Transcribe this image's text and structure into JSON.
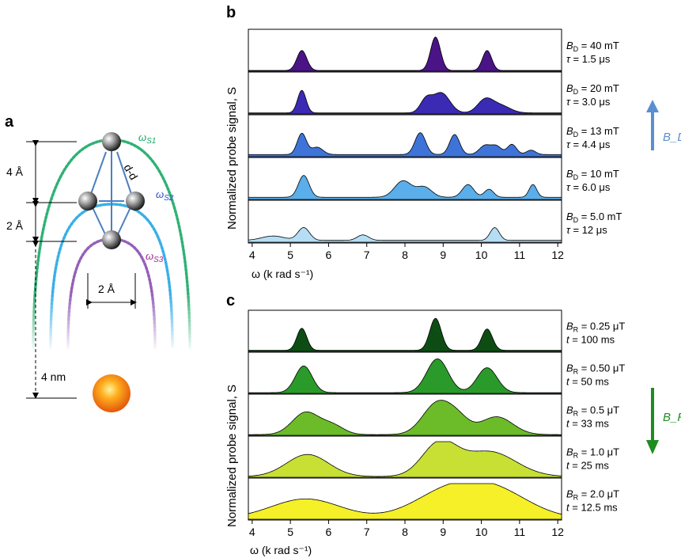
{
  "figure": {
    "panel_labels": {
      "a": "a",
      "b": "b",
      "c": "c"
    },
    "colors": {
      "green_dots": "#1aa866",
      "blue_dots": "#22a6e6",
      "purple_dots": "#8a4fb0",
      "bond": "#4a7fc0",
      "nucleus": "#ee6a10",
      "arrow_bd": "#5b8fd0",
      "arrow_br": "#1e8c1e"
    }
  },
  "diagram": {
    "omega_s1": "ω",
    "omega_s1_sub": "S1",
    "omega_s2": "ω",
    "omega_s2_sub": "S2",
    "omega_s3": "ω",
    "omega_s3_sub": "S3",
    "dd_label": "d-d",
    "dim_4a": "4 Å",
    "dim_2a_vertical": "2 Å",
    "dim_2a_horizontal": "2 Å",
    "dim_4nm": "4 nm"
  },
  "panel_b": {
    "ylabel": "Normalized probe signal, S",
    "xlabel": "ω (k rad s⁻¹)",
    "xticks": [
      "4",
      "5",
      "6",
      "7",
      "8",
      "9",
      "10",
      "11",
      "12"
    ],
    "arrow_label": "B_D",
    "rows": [
      {
        "field": "B_D = 40 mT",
        "time": "τ = 1.5 μs",
        "color": "#4a1486"
      },
      {
        "field": "B_D = 20 mT",
        "time": "τ = 3.0 μs",
        "color": "#3a2ab4"
      },
      {
        "field": "B_D = 13 mT",
        "time": "τ = 4.4 μs",
        "color": "#3e74d8"
      },
      {
        "field": "B_D = 10 mT",
        "time": "τ = 6.0 μs",
        "color": "#5aaeea"
      },
      {
        "field": "B_D = 5.0 mT",
        "time": "τ = 12 μs",
        "color": "#b5def5"
      }
    ]
  },
  "panel_c": {
    "ylabel": "Normalized probe signal, S",
    "xlabel": "ω (k rad s⁻¹)",
    "xticks": [
      "4",
      "5",
      "6",
      "7",
      "8",
      "9",
      "10",
      "11",
      "12"
    ],
    "arrow_label": "B_R",
    "rows": [
      {
        "field": "B_R = 0.25 μT",
        "time": "t = 100 ms",
        "color": "#0d4d14"
      },
      {
        "field": "B_R = 0.50 μT",
        "time": "t = 50 ms",
        "color": "#2a9a2a"
      },
      {
        "field": "B_R = 0.5 μT",
        "time": "t = 33 ms",
        "color": "#6cbc2a"
      },
      {
        "field": "B_R = 1.0 μT",
        "time": "t = 25 ms",
        "color": "#c8e034"
      },
      {
        "field": "B_R = 2.0 μT",
        "time": "t = 12.5 ms",
        "color": "#f5f028"
      }
    ]
  },
  "chart_data": [
    {
      "type": "area",
      "panel": "b",
      "xlabel": "ω (k rad s⁻¹)",
      "ylabel": "Normalized probe signal, S",
      "xlim": [
        3.9,
        12.1
      ],
      "ylim": [
        0,
        1
      ],
      "series": [
        {
          "name": "B_D = 40 mT, τ = 1.5 μs",
          "peaks": [
            [
              5.3,
              0.55,
              0.13
            ],
            [
              8.8,
              0.92,
              0.13
            ],
            [
              10.15,
              0.55,
              0.12
            ]
          ],
          "baseline": 0.02
        },
        {
          "name": "B_D = 20 mT, τ = 3.0 μs",
          "peaks": [
            [
              5.3,
              0.62,
              0.11
            ],
            [
              8.55,
              0.35,
              0.15
            ],
            [
              8.95,
              0.55,
              0.22
            ],
            [
              10.1,
              0.35,
              0.2
            ],
            [
              10.5,
              0.2,
              0.25
            ]
          ],
          "baseline": 0.03
        },
        {
          "name": "B_D = 13 mT, τ = 4.4 μs",
          "peaks": [
            [
              5.3,
              0.58,
              0.12
            ],
            [
              5.7,
              0.2,
              0.15
            ],
            [
              8.4,
              0.6,
              0.14
            ],
            [
              9.3,
              0.55,
              0.13
            ],
            [
              10.1,
              0.25,
              0.15
            ],
            [
              10.4,
              0.22,
              0.13
            ],
            [
              10.8,
              0.28,
              0.12
            ],
            [
              11.3,
              0.12,
              0.12
            ]
          ],
          "baseline": 0.06
        },
        {
          "name": "B_D = 10 mT, τ = 6.0 μs",
          "peaks": [
            [
              5.35,
              0.6,
              0.14
            ],
            [
              7.95,
              0.45,
              0.22
            ],
            [
              8.5,
              0.28,
              0.2
            ],
            [
              9.65,
              0.35,
              0.15
            ],
            [
              10.2,
              0.22,
              0.12
            ],
            [
              11.35,
              0.35,
              0.1
            ]
          ],
          "baseline": 0.06
        },
        {
          "name": "B_D = 5.0 mT, τ = 12 μs",
          "peaks": [
            [
              4.55,
              0.12,
              0.3
            ],
            [
              5.35,
              0.35,
              0.15
            ],
            [
              6.9,
              0.15,
              0.15
            ],
            [
              10.35,
              0.35,
              0.12
            ]
          ],
          "baseline": 0.05
        }
      ]
    },
    {
      "type": "area",
      "panel": "c",
      "xlabel": "ω (k rad s⁻¹)",
      "ylabel": "Normalized probe signal, S",
      "xlim": [
        3.9,
        12.1
      ],
      "ylim": [
        0,
        1
      ],
      "series": [
        {
          "name": "B_R = 0.25 μT, t = 100 ms",
          "peaks": [
            [
              5.3,
              0.62,
              0.13
            ],
            [
              8.8,
              0.9,
              0.15
            ],
            [
              10.15,
              0.6,
              0.14
            ]
          ],
          "baseline": 0.03
        },
        {
          "name": "B_R = 0.50 μT, t = 50 ms",
          "peaks": [
            [
              5.35,
              0.75,
              0.22
            ],
            [
              8.85,
              0.95,
              0.28
            ],
            [
              10.15,
              0.7,
              0.26
            ]
          ],
          "baseline": 0.02
        },
        {
          "name": "B_R = 0.5 μT, t = 33 ms",
          "peaks": [
            [
              5.4,
              0.62,
              0.35
            ],
            [
              6.1,
              0.25,
              0.3
            ],
            [
              8.85,
              0.88,
              0.38
            ],
            [
              9.4,
              0.35,
              0.3
            ],
            [
              10.4,
              0.5,
              0.42
            ]
          ],
          "baseline": 0.02
        },
        {
          "name": "B_R = 1.0 μT, t = 25 ms",
          "peaks": [
            [
              5.45,
              0.62,
              0.55
            ],
            [
              8.9,
              0.9,
              0.45
            ],
            [
              10.2,
              0.7,
              0.7
            ]
          ],
          "baseline": 0.02
        },
        {
          "name": "B_R = 2.0 μT, t = 12.5 ms",
          "peaks": [
            [
              5.4,
              0.55,
              0.9
            ],
            [
              9.1,
              0.7,
              0.9
            ],
            [
              10.4,
              0.7,
              0.9
            ]
          ],
          "baseline": 0.02
        }
      ]
    }
  ]
}
